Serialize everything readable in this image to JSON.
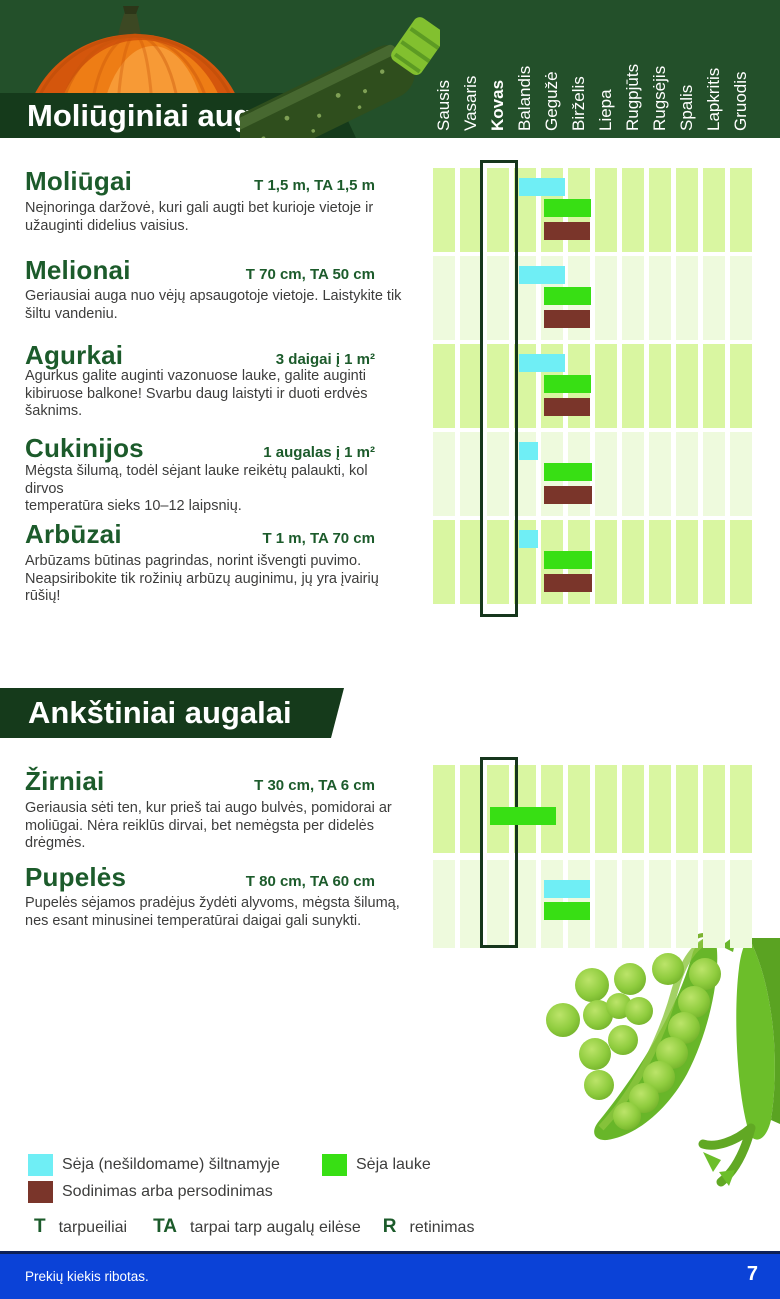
{
  "page": {
    "number": "7",
    "footer_note": "Prekių kiekis ribotas."
  },
  "header": {
    "months": [
      "Sausis",
      "Vasaris",
      "Kovas",
      "Balandis",
      "Gegužė",
      "Birželis",
      "Liepa",
      "Rugpjūts",
      "Rugsėjis",
      "Spalis",
      "Lapkritis",
      "Gruodis"
    ],
    "highlighted_month": "Kovas"
  },
  "colors": {
    "greenhouse": "#6feef5",
    "outdoor": "#38df14",
    "transplant": "#7a352a",
    "header_green": "#23502a",
    "banner_green": "#153a1b",
    "title_green": "#1c5b2b",
    "column_bright": "#d9f6a1",
    "column_pale": "#eefadd",
    "footer_blue": "#0b42d7"
  },
  "legend": {
    "items": [
      {
        "type": "greenhouse",
        "label": "Sėja (nešildomame) šiltnamyje"
      },
      {
        "type": "outdoor",
        "label": "Sėja lauke"
      },
      {
        "type": "transplant",
        "label": "Sodinimas arba persodinimas"
      }
    ]
  },
  "abbr": {
    "items": [
      {
        "key": "T",
        "label": "tarpueiliai"
      },
      {
        "key": "TA",
        "label": "tarpai tarp augalų eilėse"
      },
      {
        "key": "R",
        "label": "retinimas"
      }
    ]
  },
  "sections": [
    {
      "title": "Moliūginiai augalai",
      "crops": [
        {
          "name": "Moliūgai",
          "spec": "T 1,5 m, TA 1,5 m",
          "desc": "Neįnoringa daržovė, kuri gali augti bet kurioje vietoje ir užauginti didelius vaisius.",
          "bars": [
            {
              "type": "greenhouse",
              "from_month": 4.2,
              "to_month": 5.9
            },
            {
              "type": "outdoor",
              "from_month": 5.1,
              "to_month": 6.85
            },
            {
              "type": "transplant",
              "from_month": 5.1,
              "to_month": 6.8
            }
          ]
        },
        {
          "name": "Melionai",
          "spec": "T 70 cm, TA 50 cm",
          "desc": "Geriausiai auga nuo vėjų apsaugotoje vietoje. Laistykite tik šiltu vandeniu.",
          "bars": [
            {
              "type": "greenhouse",
              "from_month": 4.2,
              "to_month": 5.9
            },
            {
              "type": "outdoor",
              "from_month": 5.1,
              "to_month": 6.85
            },
            {
              "type": "transplant",
              "from_month": 5.1,
              "to_month": 6.8
            }
          ]
        },
        {
          "name": "Agurkai",
          "spec": "3 daigai į 1 m²",
          "desc": "Agurkus galite auginti vazonuose lauke, galite auginti kibiruose balkone! Svarbu daug laistyti ir duoti erdvės šaknims.",
          "bars": [
            {
              "type": "greenhouse",
              "from_month": 4.2,
              "to_month": 5.9
            },
            {
              "type": "outdoor",
              "from_month": 5.1,
              "to_month": 6.85
            },
            {
              "type": "transplant",
              "from_month": 5.1,
              "to_month": 6.8
            }
          ]
        },
        {
          "name": "Cukinijos",
          "spec": "1 augalas į 1 m²",
          "desc": "Mėgsta šilumą, todėl sėjant lauke reikėtų palaukti, kol dirvos\ntemperatūra sieks 10–12 laipsnių.",
          "bars": [
            {
              "type": "greenhouse",
              "from_month": 4.2,
              "to_month": 4.9
            },
            {
              "type": "outdoor",
              "from_month": 5.1,
              "to_month": 6.9
            },
            {
              "type": "transplant",
              "from_month": 5.1,
              "to_month": 6.9
            }
          ]
        },
        {
          "name": "Arbūzai",
          "spec": "T 1 m, TA 70 cm",
          "desc": "Arbūzams būtinas pagrindas, norint išvengti puvimo. Neapsiribokite tik rožinių arbūzų auginimu, jų yra įvairių rūšių!",
          "bars": [
            {
              "type": "greenhouse",
              "from_month": 4.2,
              "to_month": 4.9
            },
            {
              "type": "outdoor",
              "from_month": 5.1,
              "to_month": 6.9
            },
            {
              "type": "transplant",
              "from_month": 5.1,
              "to_month": 6.9
            }
          ]
        }
      ]
    },
    {
      "title": "Ankštiniai augalai",
      "crops": [
        {
          "name": "Žirniai",
          "spec": "T 30 cm, TA 6 cm",
          "desc": "Geriausia sėti ten, kur prieš tai augo bulvės, pomidorai ar moliūgai. Nėra reiklūs dirvai, bet nemėgsta per didelės drėgmės.",
          "bars": [
            {
              "type": "outdoor",
              "from_month": 3.1,
              "to_month": 5.55
            }
          ]
        },
        {
          "name": "Pupelės",
          "spec": "T 80 cm, TA 60 cm",
          "desc": "Pupelės sėjamos pradėjus žydėti alyvoms, mėgsta šilumą, nes esant minusinei temperatūrai daigai gali sunykti.",
          "bars": [
            {
              "type": "greenhouse",
              "from_month": 5.1,
              "to_month": 6.8
            },
            {
              "type": "outdoor",
              "from_month": 5.1,
              "to_month": 6.8
            }
          ]
        }
      ]
    }
  ]
}
